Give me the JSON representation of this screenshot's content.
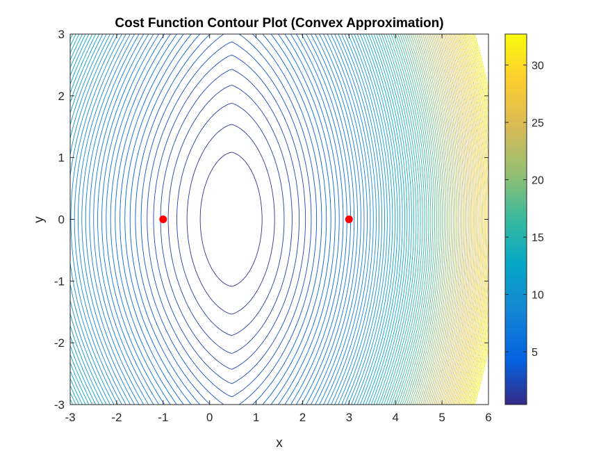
{
  "chart_data": {
    "type": "contour",
    "title": "Cost Function Contour Plot (Convex Approximation)",
    "xlabel": "x",
    "ylabel": "y",
    "xlim": [
      -3,
      6
    ],
    "ylim": [
      -3,
      3
    ],
    "x_ticks": [
      "-3",
      "-2",
      "-1",
      "0",
      "1",
      "2",
      "3",
      "4",
      "5",
      "6"
    ],
    "y_ticks": [
      "-3",
      "-2",
      "-1",
      "0",
      "1",
      "2",
      "3"
    ],
    "colorbar": {
      "min": 0.4,
      "max": 32.7,
      "ticks": [
        "5",
        "10",
        "15",
        "20",
        "25",
        "30"
      ],
      "colormap": "parula"
    },
    "contour_levels": 90,
    "points": [
      {
        "x": -1,
        "y": 0,
        "color": "#ff0000"
      },
      {
        "x": 3,
        "y": 0,
        "color": "#ff0000"
      }
    ],
    "min_location": {
      "x": 0.47,
      "y": 0
    }
  }
}
